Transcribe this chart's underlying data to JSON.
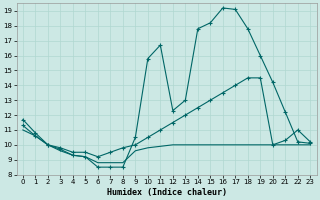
{
  "xlabel": "Humidex (Indice chaleur)",
  "bg_color": "#cce8e4",
  "line_color": "#006666",
  "grid_color": "#b0d8d0",
  "xlim": [
    -0.5,
    23.5
  ],
  "ylim": [
    8,
    19.5
  ],
  "xticks": [
    0,
    1,
    2,
    3,
    4,
    5,
    6,
    7,
    8,
    9,
    10,
    11,
    12,
    13,
    14,
    15,
    16,
    17,
    18,
    19,
    20,
    21,
    22,
    23
  ],
  "yticks": [
    8,
    9,
    10,
    11,
    12,
    13,
    14,
    15,
    16,
    17,
    18,
    19
  ],
  "line1_x": [
    0,
    1,
    2,
    3,
    4,
    5,
    6,
    7,
    8,
    9,
    10,
    11,
    12,
    13,
    14,
    15,
    16,
    17,
    18,
    19,
    20,
    21,
    22,
    23
  ],
  "line1_y": [
    11.7,
    10.8,
    10.0,
    9.7,
    9.3,
    9.2,
    8.5,
    8.5,
    8.5,
    10.5,
    15.8,
    16.7,
    12.3,
    13.0,
    17.8,
    18.2,
    19.2,
    19.1,
    17.8,
    16.0,
    14.2,
    12.2,
    10.2,
    10.1
  ],
  "line2_x": [
    0,
    1,
    2,
    3,
    4,
    5,
    6,
    7,
    8,
    9,
    10,
    11,
    12,
    13,
    14,
    15,
    16,
    17,
    18,
    19,
    20,
    21,
    22,
    23
  ],
  "line2_y": [
    11.3,
    10.6,
    10.0,
    9.8,
    9.5,
    9.5,
    9.2,
    9.5,
    9.8,
    10.0,
    10.5,
    11.0,
    11.5,
    12.0,
    12.5,
    13.0,
    13.5,
    14.0,
    14.5,
    14.5,
    10.0,
    10.3,
    11.0,
    10.2
  ],
  "line3_x": [
    0,
    1,
    2,
    3,
    4,
    5,
    6,
    7,
    8,
    9,
    10,
    11,
    12,
    13,
    14,
    15,
    16,
    17,
    18,
    19,
    20,
    21,
    22,
    23
  ],
  "line3_y": [
    11.0,
    10.6,
    10.0,
    9.6,
    9.3,
    9.2,
    8.8,
    8.8,
    8.8,
    9.6,
    9.8,
    9.9,
    10.0,
    10.0,
    10.0,
    10.0,
    10.0,
    10.0,
    10.0,
    10.0,
    10.0,
    10.0,
    10.0,
    10.0
  ]
}
